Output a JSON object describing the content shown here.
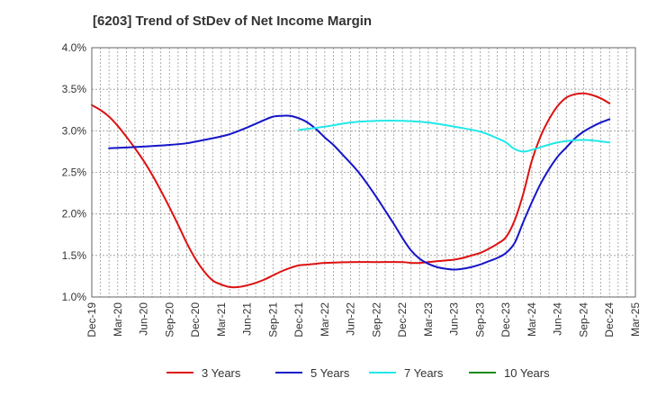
{
  "chart_data": {
    "type": "line",
    "title": "[6203]  Trend of StDev of Net Income Margin",
    "xlabel": "",
    "ylabel": "",
    "x_ticks": [
      "Dec-19",
      "Mar-20",
      "Jun-20",
      "Sep-20",
      "Dec-20",
      "Mar-21",
      "Jun-21",
      "Sep-21",
      "Dec-21",
      "Mar-22",
      "Jun-22",
      "Sep-22",
      "Dec-22",
      "Mar-23",
      "Jun-23",
      "Sep-23",
      "Dec-23",
      "Mar-24",
      "Jun-24",
      "Sep-24",
      "Dec-24",
      "Mar-25"
    ],
    "y_ticks": [
      "1.0%",
      "1.5%",
      "2.0%",
      "2.5%",
      "3.0%",
      "3.5%",
      "4.0%"
    ],
    "ylim": [
      1.0,
      4.0
    ],
    "grid": true,
    "legend_position": "bottom",
    "series": [
      {
        "name": "3 Years",
        "color": "#dd1111",
        "points": [
          [
            "Dec-19",
            3.31
          ],
          [
            "Jan-20",
            3.25
          ],
          [
            "Feb-20",
            3.17
          ],
          [
            "Mar-20",
            3.06
          ],
          [
            "Apr-20",
            2.93
          ],
          [
            "May-20",
            2.79
          ],
          [
            "Jun-20",
            2.64
          ],
          [
            "Jul-20",
            2.47
          ],
          [
            "Aug-20",
            2.28
          ],
          [
            "Sep-20",
            2.08
          ],
          [
            "Oct-20",
            1.87
          ],
          [
            "Nov-20",
            1.65
          ],
          [
            "Dec-20",
            1.46
          ],
          [
            "Jan-21",
            1.31
          ],
          [
            "Feb-21",
            1.2
          ],
          [
            "Mar-21",
            1.15
          ],
          [
            "Apr-21",
            1.12
          ],
          [
            "May-21",
            1.12
          ],
          [
            "Jun-21",
            1.14
          ],
          [
            "Jul-21",
            1.17
          ],
          [
            "Aug-21",
            1.21
          ],
          [
            "Sep-21",
            1.26
          ],
          [
            "Oct-21",
            1.31
          ],
          [
            "Nov-21",
            1.35
          ],
          [
            "Dec-21",
            1.38
          ],
          [
            "Jan-22",
            1.39
          ],
          [
            "Feb-22",
            1.4
          ],
          [
            "Mar-22",
            1.41
          ],
          [
            "Jun-22",
            1.42
          ],
          [
            "Sep-22",
            1.42
          ],
          [
            "Dec-22",
            1.42
          ],
          [
            "Jan-23",
            1.41
          ],
          [
            "Feb-23",
            1.41
          ],
          [
            "Mar-23",
            1.42
          ],
          [
            "Apr-23",
            1.43
          ],
          [
            "May-23",
            1.44
          ],
          [
            "Jun-23",
            1.45
          ],
          [
            "Jul-23",
            1.47
          ],
          [
            "Aug-23",
            1.5
          ],
          [
            "Sep-23",
            1.53
          ],
          [
            "Oct-23",
            1.58
          ],
          [
            "Nov-23",
            1.64
          ],
          [
            "Dec-23",
            1.72
          ],
          [
            "Jan-24",
            1.92
          ],
          [
            "Feb-24",
            2.24
          ],
          [
            "Mar-24",
            2.64
          ],
          [
            "Apr-24",
            2.93
          ],
          [
            "May-24",
            3.14
          ],
          [
            "Jun-24",
            3.3
          ],
          [
            "Jul-24",
            3.4
          ],
          [
            "Aug-24",
            3.44
          ],
          [
            "Sep-24",
            3.45
          ],
          [
            "Oct-24",
            3.43
          ],
          [
            "Nov-24",
            3.39
          ],
          [
            "Dec-24",
            3.33
          ]
        ]
      },
      {
        "name": "5 Years",
        "color": "#1515c8",
        "points": [
          [
            "Feb-20",
            2.79
          ],
          [
            "Jun-20",
            2.81
          ],
          [
            "Sep-20",
            2.83
          ],
          [
            "Nov-20",
            2.85
          ],
          [
            "Dec-20",
            2.87
          ],
          [
            "Feb-21",
            2.91
          ],
          [
            "Apr-21",
            2.96
          ],
          [
            "Jun-21",
            3.04
          ],
          [
            "Aug-21",
            3.13
          ],
          [
            "Sep-21",
            3.17
          ],
          [
            "Oct-21",
            3.18
          ],
          [
            "Nov-21",
            3.18
          ],
          [
            "Dec-21",
            3.15
          ],
          [
            "Jan-22",
            3.1
          ],
          [
            "Feb-22",
            3.02
          ],
          [
            "Mar-22",
            2.92
          ],
          [
            "Apr-22",
            2.83
          ],
          [
            "May-22",
            2.72
          ],
          [
            "Jun-22",
            2.61
          ],
          [
            "Jul-22",
            2.49
          ],
          [
            "Aug-22",
            2.35
          ],
          [
            "Sep-22",
            2.2
          ],
          [
            "Oct-22",
            2.04
          ],
          [
            "Nov-22",
            1.88
          ],
          [
            "Dec-22",
            1.71
          ],
          [
            "Jan-23",
            1.56
          ],
          [
            "Feb-23",
            1.46
          ],
          [
            "Mar-23",
            1.4
          ],
          [
            "Apr-23",
            1.36
          ],
          [
            "May-23",
            1.34
          ],
          [
            "Jun-23",
            1.33
          ],
          [
            "Jul-23",
            1.34
          ],
          [
            "Aug-23",
            1.36
          ],
          [
            "Sep-23",
            1.39
          ],
          [
            "Oct-23",
            1.43
          ],
          [
            "Nov-23",
            1.47
          ],
          [
            "Dec-23",
            1.53
          ],
          [
            "Jan-24",
            1.65
          ],
          [
            "Feb-24",
            1.9
          ],
          [
            "Mar-24",
            2.14
          ],
          [
            "Apr-24",
            2.36
          ],
          [
            "May-24",
            2.54
          ],
          [
            "Jun-24",
            2.69
          ],
          [
            "Jul-24",
            2.8
          ],
          [
            "Aug-24",
            2.91
          ],
          [
            "Sep-24",
            2.99
          ],
          [
            "Oct-24",
            3.05
          ],
          [
            "Nov-24",
            3.1
          ],
          [
            "Dec-24",
            3.14
          ]
        ]
      },
      {
        "name": "7 Years",
        "color": "#22e8e8",
        "points": [
          [
            "Dec-21",
            3.01
          ],
          [
            "Mar-22",
            3.05
          ],
          [
            "Jun-22",
            3.1
          ],
          [
            "Sep-22",
            3.12
          ],
          [
            "Dec-22",
            3.12
          ],
          [
            "Mar-23",
            3.1
          ],
          [
            "Jun-23",
            3.05
          ],
          [
            "Sep-23",
            2.99
          ],
          [
            "Nov-23",
            2.91
          ],
          [
            "Dec-23",
            2.86
          ],
          [
            "Jan-24",
            2.78
          ],
          [
            "Feb-24",
            2.75
          ],
          [
            "Mar-24",
            2.77
          ],
          [
            "Jun-24",
            2.86
          ],
          [
            "Sep-24",
            2.89
          ],
          [
            "Dec-24",
            2.86
          ]
        ]
      },
      {
        "name": "10 Years",
        "color": "#1a8a1a",
        "points": []
      }
    ]
  }
}
